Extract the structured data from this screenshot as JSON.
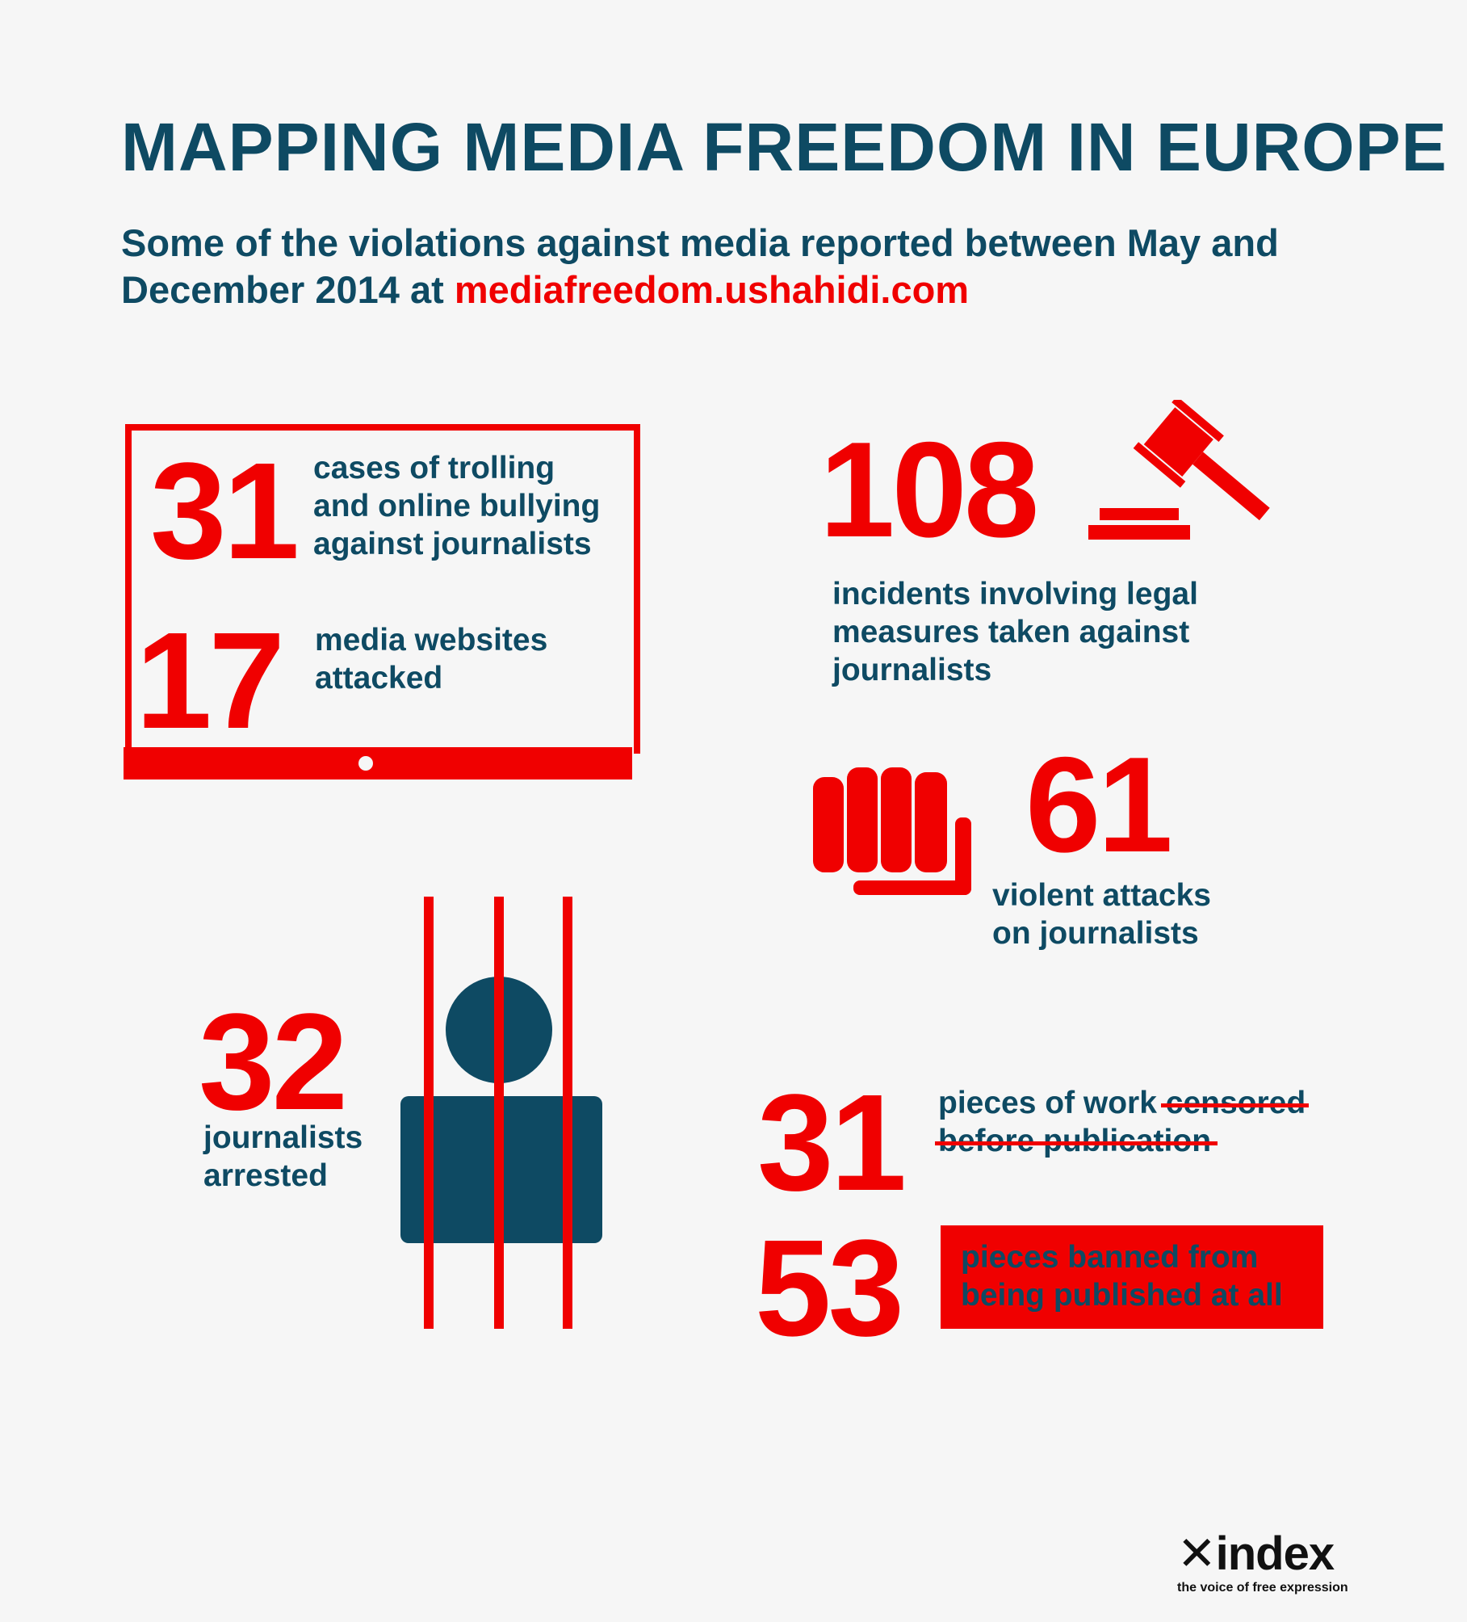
{
  "header": {
    "title": "MAPPING MEDIA FREEDOM IN EUROPE",
    "subtitle_prefix": "Some of the violations against media reported between May and December 2014 at",
    "subtitle_link": "mediafreedom.ushahidi.com"
  },
  "stats": {
    "trolling": {
      "number": "31",
      "lines": [
        "cases of trolling",
        "and online bullying",
        "against journalists"
      ]
    },
    "websites": {
      "number": "17",
      "lines": [
        "media websites",
        "attacked"
      ]
    },
    "legal": {
      "number": "108",
      "lines": [
        "incidents involving legal",
        "measures taken against",
        "journalists"
      ]
    },
    "violent": {
      "number": "61",
      "lines": [
        "violent attacks",
        "on journalists"
      ]
    },
    "arrested": {
      "number": "32",
      "lines": [
        "journalists",
        "arrested"
      ]
    },
    "censored": {
      "number": "31",
      "line1_plain": "pieces of work ",
      "line1_struck": "censored",
      "line2_struck": "before publication"
    },
    "banned": {
      "number": "53",
      "lines": [
        "pieces banned from",
        "being published at all"
      ]
    }
  },
  "icons": {
    "monitor": "monitor-icon",
    "gavel": "gavel-icon",
    "fist": "fist-icon",
    "prisoner": "prisoner-behind-bars-icon"
  },
  "colors": {
    "accent": "#f00000",
    "text": "#0e4a63",
    "background": "#f6f6f6"
  },
  "logo": {
    "mark": "index",
    "tagline": "the voice of free expression"
  }
}
